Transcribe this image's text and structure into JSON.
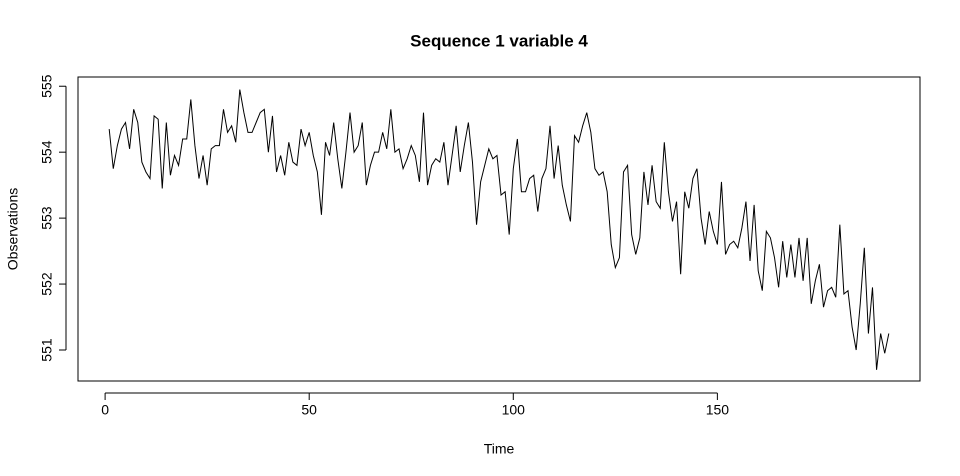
{
  "chart_data": {
    "type": "line",
    "title": "Sequence  1  variable  4",
    "x_label": "Time",
    "y_label": "Observations",
    "color": "#000000",
    "x": [
      1,
      2,
      3,
      4,
      5,
      6,
      7,
      8,
      9,
      10,
      11,
      12,
      13,
      14,
      15,
      16,
      17,
      18,
      19,
      20,
      21,
      22,
      23,
      24,
      25,
      26,
      27,
      28,
      29,
      30,
      31,
      32,
      33,
      34,
      35,
      36,
      37,
      38,
      39,
      40,
      41,
      42,
      43,
      44,
      45,
      46,
      47,
      48,
      49,
      50,
      51,
      52,
      53,
      54,
      55,
      56,
      57,
      58,
      59,
      60,
      61,
      62,
      63,
      64,
      65,
      66,
      67,
      68,
      69,
      70,
      71,
      72,
      73,
      74,
      75,
      76,
      77,
      78,
      79,
      80,
      81,
      82,
      83,
      84,
      85,
      86,
      87,
      88,
      89,
      90,
      91,
      92,
      93,
      94,
      95,
      96,
      97,
      98,
      99,
      100,
      101,
      102,
      103,
      104,
      105,
      106,
      107,
      108,
      109,
      110,
      111,
      112,
      113,
      114,
      115,
      116,
      117,
      118,
      119,
      120,
      121,
      122,
      123,
      124,
      125,
      126,
      127,
      128,
      129,
      130,
      131,
      132,
      133,
      134,
      135,
      136,
      137,
      138,
      139,
      140,
      141,
      142,
      143,
      144,
      145,
      146,
      147,
      148,
      149,
      150,
      151,
      152,
      153,
      154,
      155,
      156,
      157,
      158,
      159,
      160,
      161,
      162,
      163,
      164,
      165,
      166,
      167,
      168,
      169,
      170,
      171,
      172,
      173,
      174,
      175,
      176,
      177,
      178,
      179,
      180,
      181,
      182,
      183,
      184,
      185,
      186,
      187,
      188,
      189,
      190,
      191,
      192
    ],
    "values": [
      554.35,
      553.75,
      554.1,
      554.35,
      554.45,
      554.05,
      554.65,
      554.45,
      553.85,
      553.7,
      553.6,
      554.55,
      554.5,
      553.45,
      554.45,
      553.65,
      553.95,
      553.8,
      554.2,
      554.2,
      554.8,
      554.1,
      553.6,
      553.95,
      553.5,
      554.05,
      554.1,
      554.1,
      554.65,
      554.3,
      554.4,
      554.15,
      554.95,
      554.6,
      554.3,
      554.3,
      554.45,
      554.6,
      554.65,
      554.0,
      554.55,
      553.7,
      553.95,
      553.65,
      554.15,
      553.85,
      553.8,
      554.35,
      554.1,
      554.3,
      553.95,
      553.7,
      553.05,
      554.15,
      553.95,
      554.45,
      553.9,
      553.45,
      554.0,
      554.6,
      554.0,
      554.1,
      554.45,
      553.5,
      553.8,
      554.0,
      554.0,
      554.3,
      554.05,
      554.65,
      554.0,
      554.05,
      553.75,
      553.9,
      554.1,
      553.95,
      553.55,
      554.6,
      553.5,
      553.8,
      553.9,
      553.85,
      554.15,
      553.5,
      553.95,
      554.4,
      553.7,
      554.1,
      554.45,
      553.85,
      552.9,
      553.55,
      553.8,
      554.05,
      553.9,
      553.95,
      553.35,
      553.4,
      552.75,
      553.75,
      554.2,
      553.4,
      553.4,
      553.6,
      553.65,
      553.1,
      553.6,
      553.75,
      554.4,
      553.6,
      554.1,
      553.5,
      553.2,
      552.95,
      554.25,
      554.15,
      554.4,
      554.6,
      554.3,
      553.75,
      553.65,
      553.7,
      553.4,
      552.6,
      552.25,
      552.4,
      553.7,
      553.8,
      552.75,
      552.45,
      552.7,
      553.7,
      553.2,
      553.8,
      553.25,
      553.15,
      554.15,
      553.4,
      552.95,
      553.25,
      552.15,
      553.4,
      553.15,
      553.6,
      553.75,
      553.0,
      552.6,
      553.1,
      552.8,
      552.6,
      553.55,
      552.45,
      552.6,
      552.65,
      552.55,
      552.85,
      553.25,
      552.35,
      553.2,
      552.2,
      551.9,
      552.8,
      552.7,
      552.4,
      551.95,
      552.65,
      552.1,
      552.6,
      552.1,
      552.7,
      552.05,
      552.7,
      551.7,
      552.05,
      552.3,
      551.65,
      551.9,
      551.95,
      551.8,
      552.9,
      551.85,
      551.9,
      551.35,
      551.0,
      551.7,
      552.55,
      551.25,
      551.95,
      550.7,
      551.25,
      550.95,
      551.25
    ],
    "xlim": [
      -6.64,
      199.64
    ],
    "ylim": [
      550.53,
      555.14
    ],
    "xticks": [
      0,
      50,
      100,
      150
    ],
    "yticks": [
      551,
      552,
      553,
      554,
      555
    ]
  }
}
